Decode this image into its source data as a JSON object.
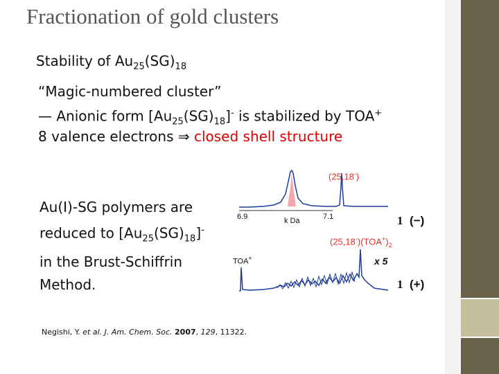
{
  "title": "Fractionation of gold clusters",
  "stability": [
    "Stability of Au",
    "25",
    "(SG)",
    "18"
  ],
  "bullets": [
    [
      "“Magic-numbered cluster”"
    ],
    [
      "— Anionic form [Au",
      "25",
      "(SG)",
      "18",
      "]",
      "-",
      " is stabilized by TOA",
      "+"
    ],
    [
      "8 valence electrons ⇒ ",
      "closed shell structure"
    ]
  ],
  "polymers": [
    "Au(I)-SG polymers are",
    "reduced to [Au",
    "25",
    "(SG)",
    "18",
    "]",
    "-",
    "in the Brust-Schiffrin",
    "Method."
  ],
  "figure": {
    "anion_peak": [
      "(25,18",
      "-",
      ")"
    ],
    "axis_left": "6.9",
    "axis_unit": "k Da",
    "axis_right": "7.1",
    "anion_num": "1",
    "anion_sign": "(−)",
    "cation_peak": [
      "(25,18",
      "-",
      ")(TOA",
      "+",
      ")",
      "2"
    ],
    "toa": [
      "TOA",
      "+"
    ],
    "scale": "x 5",
    "cation_num": "1",
    "cation_sign": "(+)"
  },
  "citation": [
    "Negishi, Y. ",
    "et al. J. Am. Chem. Soc.",
    " ",
    "2007",
    ", ",
    "129",
    ", 11322."
  ]
}
